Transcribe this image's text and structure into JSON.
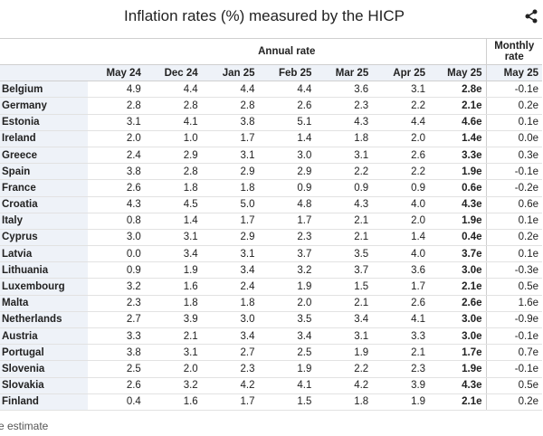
{
  "header": {
    "title": "Inflation rates (%) measured by the HICP"
  },
  "table": {
    "group_headers": [
      "Annual rate",
      "Monthly rate"
    ],
    "columns": [
      "May 24",
      "Dec 24",
      "Jan 25",
      "Feb 25",
      "Mar 25",
      "Apr 25",
      "May 25",
      "May 25"
    ],
    "rows": [
      [
        "Belgium",
        "4.9",
        "4.4",
        "4.4",
        "4.4",
        "3.6",
        "3.1",
        "2.8e",
        "-0.1e"
      ],
      [
        "Germany",
        "2.8",
        "2.8",
        "2.8",
        "2.6",
        "2.3",
        "2.2",
        "2.1e",
        "0.2e"
      ],
      [
        "Estonia",
        "3.1",
        "4.1",
        "3.8",
        "5.1",
        "4.3",
        "4.4",
        "4.6e",
        "0.1e"
      ],
      [
        "Ireland",
        "2.0",
        "1.0",
        "1.7",
        "1.4",
        "1.8",
        "2.0",
        "1.4e",
        "0.0e"
      ],
      [
        "Greece",
        "2.4",
        "2.9",
        "3.1",
        "3.0",
        "3.1",
        "2.6",
        "3.3e",
        "0.3e"
      ],
      [
        "Spain",
        "3.8",
        "2.8",
        "2.9",
        "2.9",
        "2.2",
        "2.2",
        "1.9e",
        "-0.1e"
      ],
      [
        "France",
        "2.6",
        "1.8",
        "1.8",
        "0.9",
        "0.9",
        "0.9",
        "0.6e",
        "-0.2e"
      ],
      [
        "Croatia",
        "4.3",
        "4.5",
        "5.0",
        "4.8",
        "4.3",
        "4.0",
        "4.3e",
        "0.6e"
      ],
      [
        "Italy",
        "0.8",
        "1.4",
        "1.7",
        "1.7",
        "2.1",
        "2.0",
        "1.9e",
        "0.1e"
      ],
      [
        "Cyprus",
        "3.0",
        "3.1",
        "2.9",
        "2.3",
        "2.1",
        "1.4",
        "0.4e",
        "0.2e"
      ],
      [
        "Latvia",
        "0.0",
        "3.4",
        "3.1",
        "3.7",
        "3.5",
        "4.0",
        "3.7e",
        "0.1e"
      ],
      [
        "Lithuania",
        "0.9",
        "1.9",
        "3.4",
        "3.2",
        "3.7",
        "3.6",
        "3.0e",
        "-0.3e"
      ],
      [
        "Luxembourg",
        "3.2",
        "1.6",
        "2.4",
        "1.9",
        "1.5",
        "1.7",
        "2.1e",
        "0.5e"
      ],
      [
        "Malta",
        "2.3",
        "1.8",
        "1.8",
        "2.0",
        "2.1",
        "2.6",
        "2.6e",
        "1.6e"
      ],
      [
        "Netherlands",
        "2.7",
        "3.9",
        "3.0",
        "3.5",
        "3.4",
        "4.1",
        "3.0e",
        "-0.9e"
      ],
      [
        "Austria",
        "3.3",
        "2.1",
        "3.4",
        "3.4",
        "3.1",
        "3.3",
        "3.0e",
        "-0.1e"
      ],
      [
        "Portugal",
        "3.8",
        "3.1",
        "2.7",
        "2.5",
        "1.9",
        "2.1",
        "1.7e",
        "0.7e"
      ],
      [
        "Slovenia",
        "2.5",
        "2.0",
        "2.3",
        "1.9",
        "2.2",
        "2.3",
        "1.9e",
        "-0.1e"
      ],
      [
        "Slovakia",
        "2.6",
        "3.2",
        "4.2",
        "4.1",
        "4.2",
        "3.9",
        "4.3e",
        "0.5e"
      ],
      [
        "Finland",
        "0.4",
        "1.6",
        "1.7",
        "1.5",
        "1.8",
        "1.9",
        "2.1e",
        "0.2e"
      ]
    ]
  },
  "footer": {
    "note": "e estimate"
  }
}
